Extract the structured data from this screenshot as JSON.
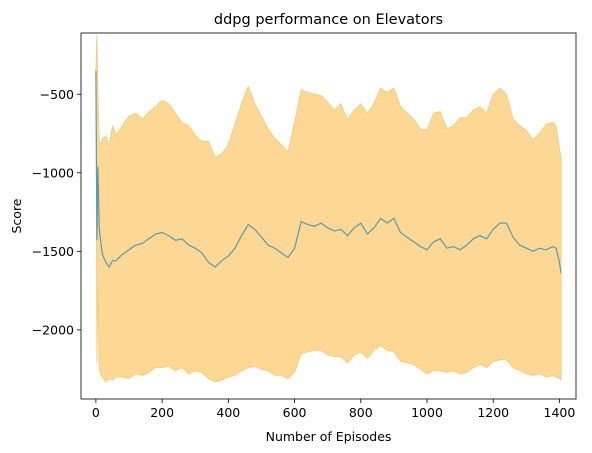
{
  "chart_data": {
    "type": "area",
    "title": "ddpg performance on Elevators",
    "xlabel": "Number of Episodes",
    "ylabel": "Score",
    "xlim": [
      -45,
      1450
    ],
    "ylim": [
      -2440,
      -110
    ],
    "xticks": [
      0,
      200,
      400,
      600,
      800,
      1000,
      1200,
      1400
    ],
    "yticks": [
      -2000,
      -1500,
      -1000,
      -500
    ],
    "grid": false,
    "colors": {
      "mean": "#5a9bab",
      "band_fill": "#fdd895",
      "band_edge": "#f9c86b"
    },
    "mean": {
      "x": [
        0,
        3,
        6,
        10,
        15,
        20,
        30,
        40,
        50,
        60,
        80,
        100,
        120,
        140,
        160,
        180,
        200,
        220,
        240,
        260,
        280,
        300,
        320,
        340,
        360,
        380,
        400,
        420,
        440,
        460,
        480,
        500,
        520,
        540,
        560,
        580,
        600,
        620,
        640,
        660,
        680,
        700,
        720,
        740,
        760,
        780,
        800,
        820,
        840,
        860,
        880,
        900,
        920,
        940,
        960,
        980,
        1000,
        1020,
        1040,
        1060,
        1080,
        1100,
        1120,
        1140,
        1160,
        1180,
        1200,
        1220,
        1240,
        1260,
        1280,
        1300,
        1320,
        1340,
        1360,
        1380,
        1390,
        1400,
        1405
      ],
      "y": [
        -350,
        -1430,
        -960,
        -1350,
        -1450,
        -1520,
        -1570,
        -1600,
        -1560,
        -1560,
        -1520,
        -1490,
        -1460,
        -1450,
        -1420,
        -1390,
        -1380,
        -1400,
        -1430,
        -1420,
        -1460,
        -1480,
        -1510,
        -1570,
        -1600,
        -1560,
        -1530,
        -1480,
        -1400,
        -1330,
        -1360,
        -1410,
        -1460,
        -1480,
        -1510,
        -1540,
        -1480,
        -1310,
        -1330,
        -1340,
        -1320,
        -1350,
        -1370,
        -1360,
        -1400,
        -1350,
        -1320,
        -1390,
        -1350,
        -1290,
        -1320,
        -1290,
        -1380,
        -1410,
        -1440,
        -1470,
        -1490,
        -1440,
        -1420,
        -1480,
        -1470,
        -1490,
        -1460,
        -1420,
        -1400,
        -1420,
        -1360,
        -1320,
        -1320,
        -1410,
        -1460,
        -1480,
        -1500,
        -1480,
        -1490,
        -1470,
        -1480,
        -1570,
        -1640
      ]
    },
    "band_upper": {
      "x": [
        0,
        3,
        6,
        10,
        15,
        20,
        30,
        40,
        50,
        60,
        80,
        100,
        120,
        140,
        160,
        180,
        200,
        220,
        240,
        260,
        280,
        300,
        320,
        340,
        360,
        380,
        400,
        420,
        440,
        460,
        480,
        500,
        520,
        540,
        560,
        580,
        600,
        620,
        640,
        660,
        680,
        700,
        720,
        740,
        760,
        780,
        800,
        820,
        840,
        860,
        880,
        900,
        920,
        940,
        960,
        980,
        1000,
        1020,
        1040,
        1060,
        1080,
        1100,
        1120,
        1140,
        1160,
        1180,
        1200,
        1220,
        1240,
        1260,
        1280,
        1300,
        1320,
        1340,
        1360,
        1380,
        1390,
        1400,
        1405
      ],
      "y": [
        -350,
        -120,
        -470,
        -800,
        -820,
        -780,
        -770,
        -830,
        -700,
        -760,
        -700,
        -640,
        -620,
        -660,
        -610,
        -580,
        -540,
        -560,
        -620,
        -680,
        -700,
        -760,
        -800,
        -800,
        -900,
        -880,
        -820,
        -690,
        -560,
        -450,
        -560,
        -640,
        -720,
        -780,
        -820,
        -870,
        -680,
        -470,
        -490,
        -500,
        -510,
        -550,
        -600,
        -560,
        -660,
        -600,
        -560,
        -620,
        -560,
        -460,
        -490,
        -460,
        -580,
        -620,
        -660,
        -720,
        -730,
        -620,
        -610,
        -720,
        -700,
        -650,
        -650,
        -600,
        -580,
        -620,
        -500,
        -460,
        -500,
        -660,
        -700,
        -730,
        -790,
        -750,
        -690,
        -680,
        -700,
        -850,
        -900
      ]
    },
    "band_lower": {
      "x": [
        0,
        3,
        6,
        10,
        15,
        20,
        30,
        40,
        50,
        60,
        80,
        100,
        120,
        140,
        160,
        180,
        200,
        220,
        240,
        260,
        280,
        300,
        320,
        340,
        360,
        380,
        400,
        420,
        440,
        460,
        480,
        500,
        520,
        540,
        560,
        580,
        600,
        620,
        640,
        660,
        680,
        700,
        720,
        740,
        760,
        780,
        800,
        820,
        840,
        860,
        880,
        900,
        920,
        940,
        960,
        980,
        1000,
        1020,
        1040,
        1060,
        1080,
        1100,
        1120,
        1140,
        1160,
        1180,
        1200,
        1220,
        1240,
        1260,
        1280,
        1300,
        1320,
        1340,
        1360,
        1380,
        1390,
        1400,
        1405
      ],
      "y": [
        -350,
        -2210,
        -1700,
        -2250,
        -2290,
        -2300,
        -2330,
        -2310,
        -2320,
        -2300,
        -2300,
        -2310,
        -2280,
        -2290,
        -2270,
        -2240,
        -2240,
        -2230,
        -2260,
        -2240,
        -2280,
        -2260,
        -2270,
        -2310,
        -2330,
        -2320,
        -2300,
        -2290,
        -2260,
        -2240,
        -2230,
        -2250,
        -2260,
        -2290,
        -2290,
        -2310,
        -2270,
        -2150,
        -2140,
        -2130,
        -2130,
        -2160,
        -2170,
        -2170,
        -2210,
        -2160,
        -2140,
        -2180,
        -2130,
        -2100,
        -2130,
        -2140,
        -2200,
        -2210,
        -2220,
        -2250,
        -2280,
        -2260,
        -2260,
        -2270,
        -2260,
        -2280,
        -2270,
        -2240,
        -2220,
        -2240,
        -2200,
        -2190,
        -2190,
        -2240,
        -2260,
        -2280,
        -2290,
        -2280,
        -2300,
        -2290,
        -2300,
        -2310,
        -2320
      ]
    }
  }
}
